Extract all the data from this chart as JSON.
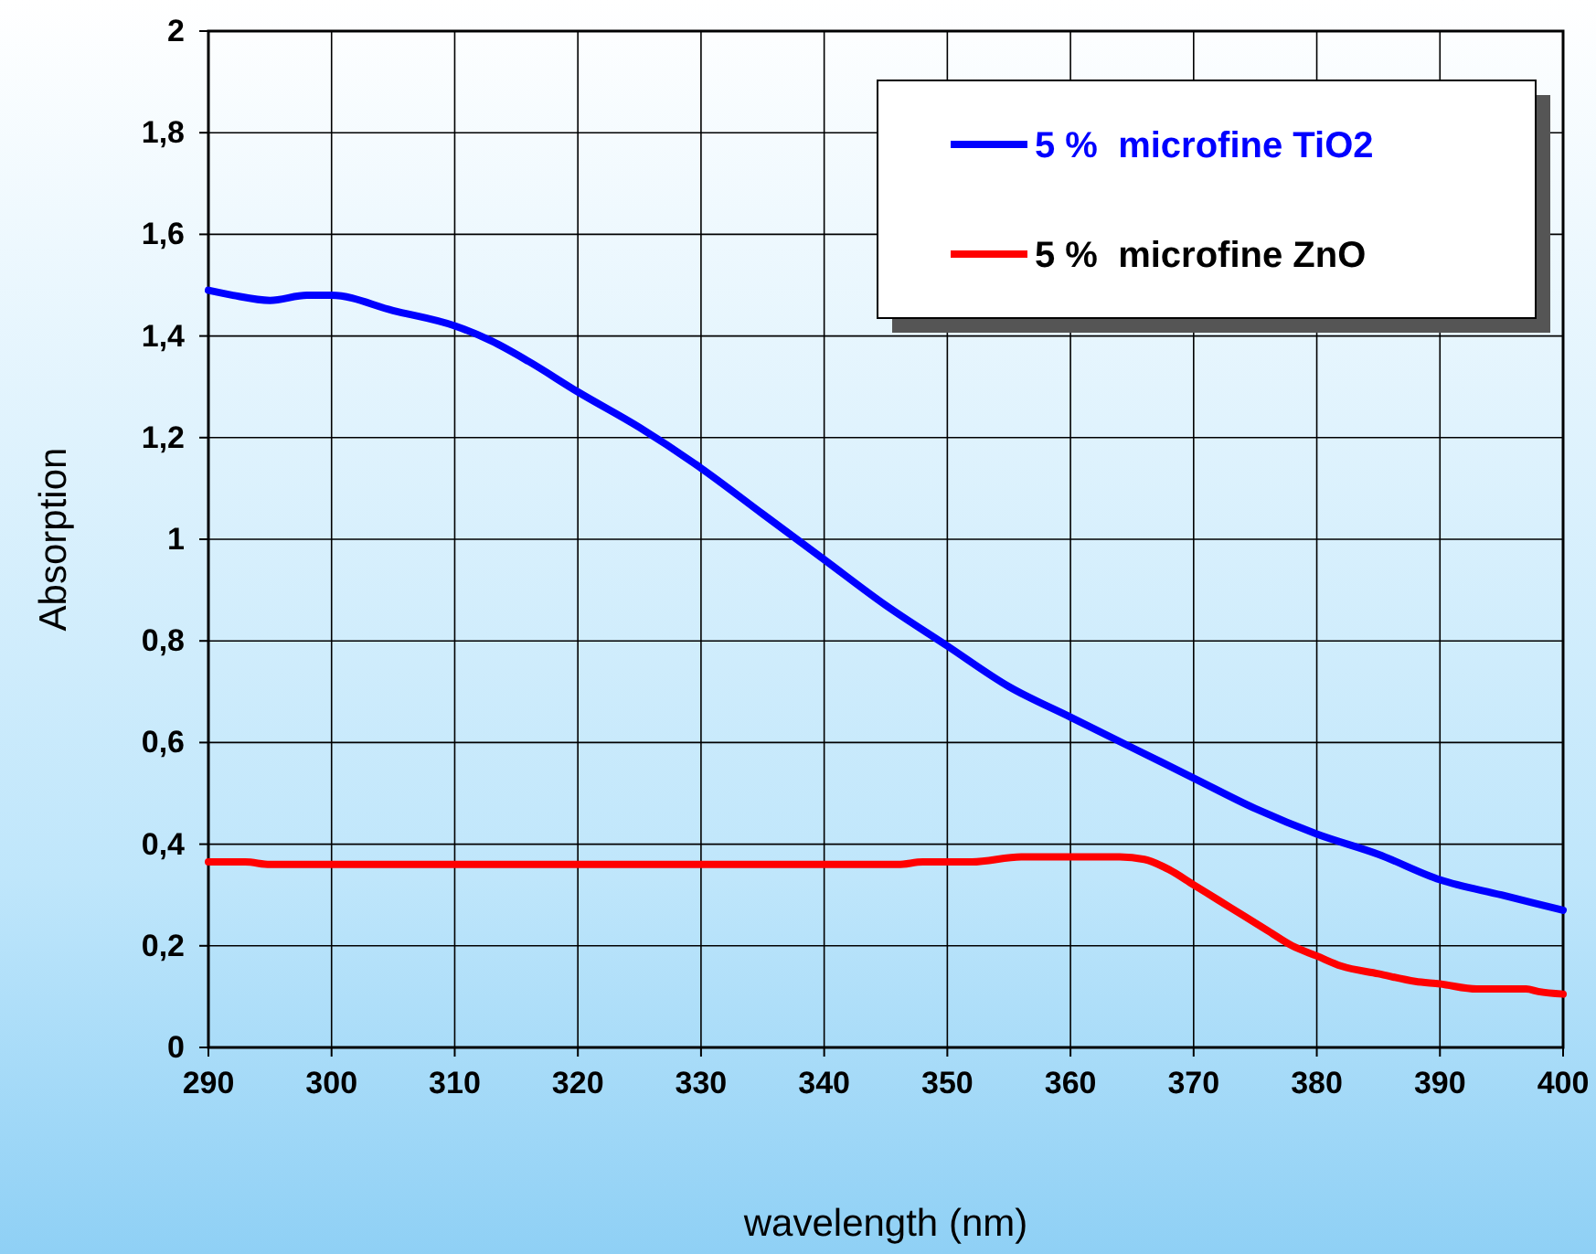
{
  "chart_data": {
    "type": "line",
    "xlabel": "wavelength (nm)",
    "ylabel": "Absorption",
    "xlim": [
      290,
      400
    ],
    "xticks": [
      290,
      300,
      310,
      320,
      330,
      340,
      350,
      360,
      370,
      380,
      390,
      400
    ],
    "ylim": [
      0,
      2
    ],
    "yticks": [
      0,
      {
        "value": 0.2,
        "label": "0,2"
      },
      {
        "value": 0.4,
        "label": "0,4"
      },
      {
        "value": 0.6,
        "label": "0,6"
      },
      {
        "value": 0.8,
        "label": "0,8"
      },
      1,
      {
        "value": 1.2,
        "label": "1,2"
      },
      {
        "value": 1.4,
        "label": "1,4"
      },
      {
        "value": 1.6,
        "label": "1,6"
      },
      {
        "value": 1.8,
        "label": "1,8"
      },
      2
    ],
    "grid": true,
    "legend": "top right",
    "line_style": "solid",
    "marker": "none",
    "series": [
      {
        "name": "5 %  microfine TiO2",
        "color": "#0000ff",
        "x": [
          290,
          292,
          295,
          298,
          300,
          305,
          310,
          313,
          316,
          320,
          325,
          330,
          335,
          340,
          345,
          350,
          355,
          360,
          365,
          370,
          375,
          380,
          385,
          390,
          395,
          400
        ],
        "values": [
          1.49,
          1.48,
          1.47,
          1.48,
          1.48,
          1.45,
          1.42,
          1.39,
          1.35,
          1.29,
          1.22,
          1.14,
          1.05,
          0.96,
          0.87,
          0.79,
          0.71,
          0.65,
          0.59,
          0.53,
          0.47,
          0.42,
          0.38,
          0.33,
          0.3,
          0.27
        ]
      },
      {
        "name": "5 %  microfine ZnO",
        "color": "#ff0000",
        "x": [
          290,
          293,
          295,
          300,
          346,
          348,
          352,
          356,
          364,
          366,
          368,
          370,
          372,
          374,
          376,
          378,
          380,
          382,
          385,
          388,
          390,
          393,
          397,
          398,
          400
        ],
        "values": [
          0.365,
          0.365,
          0.36,
          0.36,
          0.36,
          0.365,
          0.365,
          0.375,
          0.375,
          0.37,
          0.35,
          0.32,
          0.29,
          0.26,
          0.23,
          0.2,
          0.18,
          0.16,
          0.145,
          0.13,
          0.125,
          0.115,
          0.115,
          0.11,
          0.105
        ]
      }
    ]
  }
}
